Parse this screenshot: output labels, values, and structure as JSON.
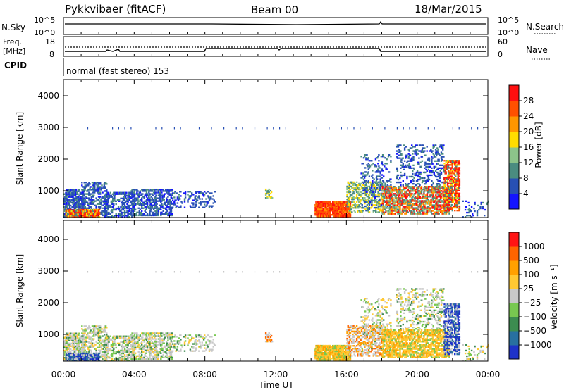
{
  "header": {
    "radar": "Pykkvibaer (fitACF)",
    "beam": "Beam 00",
    "date": "18/Mar/2015"
  },
  "top_panels": {
    "nsky": {
      "label": "N.Sky",
      "ticks": [
        "10^5",
        "10^0"
      ]
    },
    "nsearch": {
      "label": "N.Search",
      "ticks": [
        "10^5",
        "10^0"
      ]
    },
    "freq": {
      "label_line1": "Freq.",
      "label_line2": "[MHz]",
      "ticks": [
        "18",
        "8"
      ]
    },
    "nave": {
      "label": "Nave",
      "ticks": [
        "60",
        "0"
      ]
    },
    "cpid": {
      "label": "CPID",
      "text": "normal (fast stereo) 153"
    }
  },
  "chart_data": [
    {
      "type": "heatmap",
      "name": "power",
      "ylabel": "Slant Range [km]",
      "yticks": [
        "1000",
        "2000",
        "3000",
        "4000"
      ],
      "xticks": [
        "00:00",
        "04:00",
        "08:00",
        "12:00",
        "16:00",
        "20:00",
        "00:00"
      ],
      "colorbar": {
        "label": "Power [dB]",
        "ticks": [
          "4",
          "8",
          "12",
          "16",
          "20",
          "24",
          "28"
        ],
        "colors": [
          "#1414ff",
          "#2850b4",
          "#4a8c80",
          "#8cc48a",
          "#ffdc00",
          "#ff9600",
          "#ff5000",
          "#ff1010"
        ]
      }
    },
    {
      "type": "heatmap",
      "name": "velocity",
      "ylabel": "Slant Range [km]",
      "yticks": [
        "1000",
        "2000",
        "3000",
        "4000"
      ],
      "xticks": [
        "00:00",
        "04:00",
        "08:00",
        "12:00",
        "16:00",
        "20:00",
        "00:00"
      ],
      "xlabel": "Time UT",
      "colorbar": {
        "label": "Velocity [m s⁻¹]",
        "ticks": [
          "1000",
          "500",
          "100",
          "25",
          "−25",
          "−100",
          "−500",
          "−1000"
        ],
        "colors": [
          "#1e32c8",
          "#2870a0",
          "#3c8c50",
          "#78c850",
          "#c8c8c8",
          "#ffc832",
          "#ffa000",
          "#ff6400",
          "#ff1414"
        ]
      }
    }
  ]
}
